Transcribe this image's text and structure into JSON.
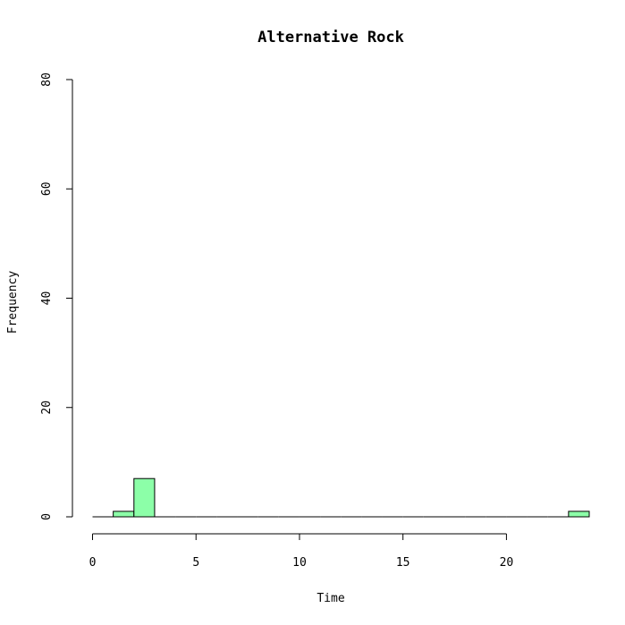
{
  "chart_data": {
    "type": "bar",
    "title": "Alternative Rock",
    "xlabel": "Time",
    "ylabel": "Frequency",
    "xlim": [
      0,
      24
    ],
    "ylim": [
      0,
      80
    ],
    "x_ticks": [
      0,
      5,
      10,
      15,
      20
    ],
    "y_ticks": [
      0,
      20,
      40,
      60,
      80
    ],
    "bin_width": 1,
    "bins": [
      {
        "start": 0,
        "end": 1,
        "count": 0
      },
      {
        "start": 1,
        "end": 2,
        "count": 1
      },
      {
        "start": 2,
        "end": 3,
        "count": 7
      },
      {
        "start": 3,
        "end": 4,
        "count": 0
      },
      {
        "start": 4,
        "end": 5,
        "count": 0
      },
      {
        "start": 5,
        "end": 6,
        "count": 0
      },
      {
        "start": 6,
        "end": 7,
        "count": 0
      },
      {
        "start": 7,
        "end": 8,
        "count": 0
      },
      {
        "start": 8,
        "end": 9,
        "count": 0
      },
      {
        "start": 9,
        "end": 10,
        "count": 0
      },
      {
        "start": 10,
        "end": 11,
        "count": 0
      },
      {
        "start": 11,
        "end": 12,
        "count": 0
      },
      {
        "start": 12,
        "end": 13,
        "count": 0
      },
      {
        "start": 13,
        "end": 14,
        "count": 0
      },
      {
        "start": 14,
        "end": 15,
        "count": 0
      },
      {
        "start": 15,
        "end": 16,
        "count": 0
      },
      {
        "start": 16,
        "end": 17,
        "count": 0
      },
      {
        "start": 17,
        "end": 18,
        "count": 0
      },
      {
        "start": 18,
        "end": 19,
        "count": 0
      },
      {
        "start": 19,
        "end": 20,
        "count": 0
      },
      {
        "start": 20,
        "end": 21,
        "count": 0
      },
      {
        "start": 21,
        "end": 22,
        "count": 0
      },
      {
        "start": 22,
        "end": 23,
        "count": 0
      },
      {
        "start": 23,
        "end": 24,
        "count": 1
      }
    ],
    "bar_color": "#8CFFA8",
    "grid": false
  }
}
